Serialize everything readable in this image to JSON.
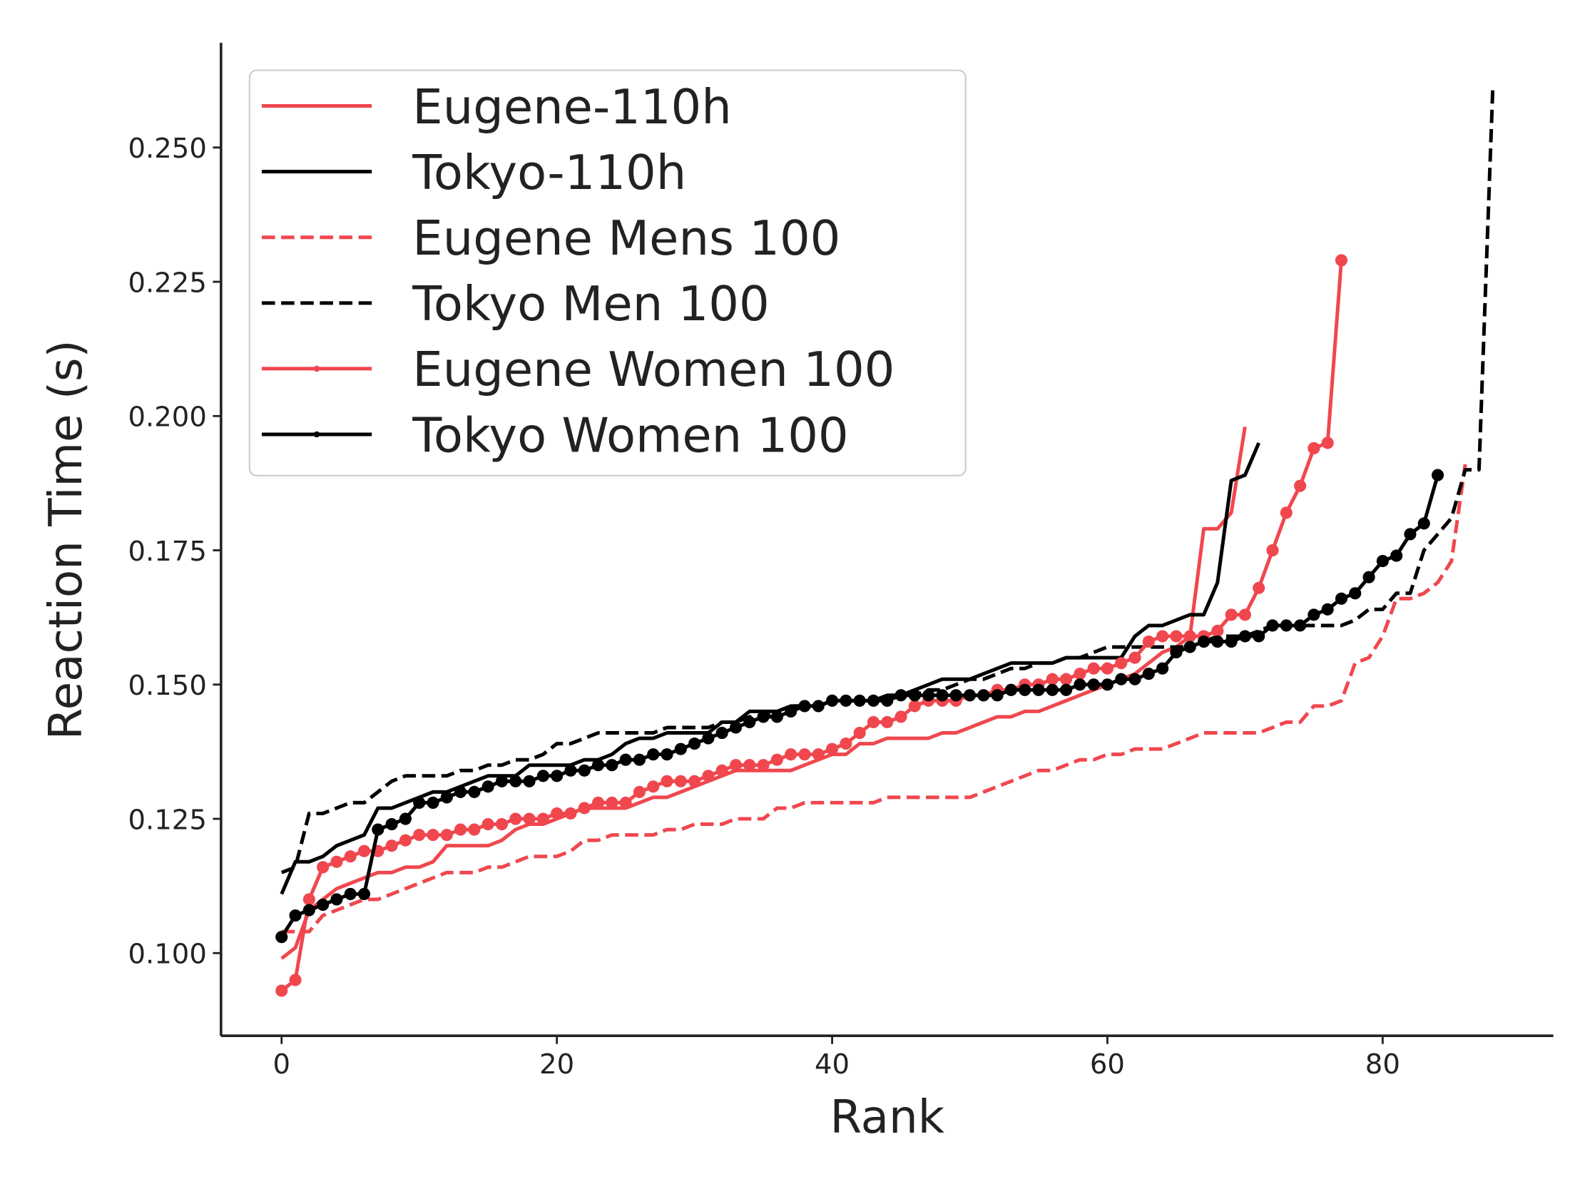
{
  "chart_data": {
    "type": "line",
    "xlabel": "Rank",
    "ylabel": "Reaction Time (s)",
    "x": [
      0,
      1,
      2,
      3,
      4,
      5,
      6,
      7,
      8,
      9,
      10,
      11,
      12,
      13,
      14,
      15,
      16,
      17,
      18,
      19,
      20,
      21,
      22,
      23,
      24,
      25,
      26,
      27,
      28,
      29,
      30,
      31,
      32,
      33,
      34,
      35,
      36,
      37,
      38,
      39,
      40,
      41,
      42,
      43,
      44,
      45,
      46,
      47,
      48,
      49,
      50,
      51,
      52,
      53,
      54,
      55,
      56,
      57,
      58,
      59,
      60,
      61,
      62,
      63,
      64,
      65,
      66,
      67,
      68,
      69,
      70,
      71,
      72,
      73,
      74,
      75,
      76,
      77,
      78,
      79,
      80,
      81,
      82,
      83,
      84,
      85,
      86,
      87,
      88
    ],
    "xlim": [
      -4.4,
      92.4
    ],
    "xticks": [
      0,
      20,
      40,
      60,
      80
    ],
    "ylim": [
      0.0846,
      0.2695
    ],
    "yticks": [
      {
        "value": 0.1,
        "label": "0.100"
      },
      {
        "value": 0.125,
        "label": "0.125"
      },
      {
        "value": 0.15,
        "label": "0.150"
      },
      {
        "value": 0.175,
        "label": "0.175"
      },
      {
        "value": 0.2,
        "label": "0.200"
      },
      {
        "value": 0.225,
        "label": "0.225"
      },
      {
        "value": 0.25,
        "label": "0.250"
      }
    ],
    "legend": "upper left",
    "grid": false,
    "series": [
      {
        "name": "Eugene-110h",
        "color": "#f0474e",
        "dash": false,
        "marker": false,
        "values": [
          0.099,
          0.101,
          0.108,
          0.11,
          0.112,
          0.113,
          0.114,
          0.115,
          0.115,
          0.116,
          0.116,
          0.117,
          0.12,
          0.12,
          0.12,
          0.12,
          0.121,
          0.123,
          0.124,
          0.124,
          0.125,
          0.126,
          0.127,
          0.127,
          0.127,
          0.127,
          0.128,
          0.129,
          0.129,
          0.13,
          0.131,
          0.132,
          0.133,
          0.134,
          0.134,
          0.134,
          0.134,
          0.134,
          0.135,
          0.136,
          0.137,
          0.137,
          0.139,
          0.139,
          0.14,
          0.14,
          0.14,
          0.14,
          0.141,
          0.141,
          0.142,
          0.143,
          0.144,
          0.144,
          0.145,
          0.145,
          0.146,
          0.147,
          0.148,
          0.149,
          0.15,
          0.151,
          0.152,
          0.154,
          0.156,
          0.157,
          0.159,
          0.179,
          0.179,
          0.182,
          0.198,
          null,
          null,
          null,
          null,
          null,
          null,
          null,
          null,
          null,
          null,
          null,
          null,
          null,
          null,
          null,
          null,
          null,
          null
        ]
      },
      {
        "name": "Tokyo-110h",
        "color": "#000000",
        "dash": false,
        "marker": false,
        "values": [
          0.111,
          0.117,
          0.117,
          0.118,
          0.12,
          0.121,
          0.122,
          0.127,
          0.127,
          0.128,
          0.129,
          0.13,
          0.13,
          0.131,
          0.132,
          0.133,
          0.133,
          0.133,
          0.135,
          0.135,
          0.135,
          0.135,
          0.136,
          0.136,
          0.137,
          0.139,
          0.14,
          0.14,
          0.141,
          0.141,
          0.141,
          0.141,
          0.143,
          0.143,
          0.145,
          0.145,
          0.145,
          0.146,
          0.146,
          0.146,
          0.147,
          0.147,
          0.147,
          0.147,
          0.148,
          0.148,
          0.149,
          0.15,
          0.151,
          0.151,
          0.151,
          0.152,
          0.153,
          0.154,
          0.154,
          0.154,
          0.154,
          0.155,
          0.155,
          0.155,
          0.155,
          0.155,
          0.159,
          0.161,
          0.161,
          0.162,
          0.163,
          0.163,
          0.169,
          0.188,
          0.189,
          0.195,
          null,
          null,
          null,
          null,
          null,
          null,
          null,
          null,
          null,
          null,
          null,
          null,
          null,
          null,
          null,
          null,
          null
        ]
      },
      {
        "name": "Eugene Mens 100",
        "color": "#f0474e",
        "dash": true,
        "marker": false,
        "values": [
          0.104,
          0.104,
          0.104,
          0.107,
          0.108,
          0.109,
          0.11,
          0.11,
          0.111,
          0.112,
          0.113,
          0.114,
          0.115,
          0.115,
          0.115,
          0.116,
          0.116,
          0.117,
          0.118,
          0.118,
          0.118,
          0.119,
          0.121,
          0.121,
          0.122,
          0.122,
          0.122,
          0.122,
          0.123,
          0.123,
          0.124,
          0.124,
          0.124,
          0.125,
          0.125,
          0.125,
          0.127,
          0.127,
          0.128,
          0.128,
          0.128,
          0.128,
          0.128,
          0.128,
          0.129,
          0.129,
          0.129,
          0.129,
          0.129,
          0.129,
          0.129,
          0.13,
          0.131,
          0.132,
          0.133,
          0.134,
          0.134,
          0.135,
          0.136,
          0.136,
          0.137,
          0.137,
          0.138,
          0.138,
          0.138,
          0.139,
          0.14,
          0.141,
          0.141,
          0.141,
          0.141,
          0.141,
          0.142,
          0.143,
          0.143,
          0.146,
          0.146,
          0.147,
          0.154,
          0.155,
          0.159,
          0.166,
          0.166,
          0.167,
          0.169,
          0.173,
          0.191,
          null,
          null
        ]
      },
      {
        "name": "Tokyo Men 100",
        "color": "#000000",
        "dash": true,
        "marker": false,
        "values": [
          0.115,
          0.116,
          0.126,
          0.126,
          0.127,
          0.128,
          0.128,
          0.13,
          0.132,
          0.133,
          0.133,
          0.133,
          0.133,
          0.134,
          0.134,
          0.135,
          0.135,
          0.136,
          0.136,
          0.137,
          0.139,
          0.139,
          0.14,
          0.141,
          0.141,
          0.141,
          0.141,
          0.141,
          0.142,
          0.142,
          0.142,
          0.142,
          0.143,
          0.143,
          0.144,
          0.144,
          0.145,
          0.146,
          0.146,
          0.146,
          0.147,
          0.147,
          0.147,
          0.147,
          0.148,
          0.148,
          0.148,
          0.149,
          0.149,
          0.15,
          0.151,
          0.151,
          0.152,
          0.153,
          0.153,
          0.154,
          0.154,
          0.155,
          0.155,
          0.156,
          0.157,
          0.157,
          0.157,
          0.157,
          0.157,
          0.157,
          0.157,
          0.158,
          0.159,
          0.159,
          0.159,
          0.16,
          0.161,
          0.161,
          0.161,
          0.161,
          0.161,
          0.161,
          0.162,
          0.164,
          0.164,
          0.167,
          0.167,
          0.175,
          0.178,
          0.181,
          0.19,
          0.19,
          0.261
        ]
      },
      {
        "name": "Eugene Women 100",
        "color": "#f0474e",
        "dash": false,
        "marker": true,
        "values": [
          0.093,
          0.095,
          0.11,
          0.116,
          0.117,
          0.118,
          0.119,
          0.119,
          0.12,
          0.121,
          0.122,
          0.122,
          0.122,
          0.123,
          0.123,
          0.124,
          0.124,
          0.125,
          0.125,
          0.125,
          0.126,
          0.126,
          0.127,
          0.128,
          0.128,
          0.128,
          0.13,
          0.131,
          0.132,
          0.132,
          0.132,
          0.133,
          0.134,
          0.135,
          0.135,
          0.135,
          0.136,
          0.137,
          0.137,
          0.137,
          0.138,
          0.139,
          0.141,
          0.143,
          0.143,
          0.144,
          0.146,
          0.147,
          0.147,
          0.147,
          0.148,
          0.148,
          0.149,
          0.149,
          0.15,
          0.15,
          0.151,
          0.151,
          0.152,
          0.153,
          0.153,
          0.154,
          0.155,
          0.158,
          0.159,
          0.159,
          0.159,
          0.159,
          0.16,
          0.163,
          0.163,
          0.168,
          0.175,
          0.182,
          0.187,
          0.194,
          0.195,
          0.229,
          null,
          null,
          null,
          null,
          null,
          null,
          null,
          null,
          null,
          null,
          null
        ]
      },
      {
        "name": "Tokyo Women 100",
        "color": "#000000",
        "dash": false,
        "marker": true,
        "values": [
          0.103,
          0.107,
          0.108,
          0.109,
          0.11,
          0.111,
          0.111,
          0.123,
          0.124,
          0.125,
          0.128,
          0.128,
          0.129,
          0.13,
          0.13,
          0.131,
          0.132,
          0.132,
          0.132,
          0.133,
          0.133,
          0.134,
          0.134,
          0.135,
          0.135,
          0.136,
          0.136,
          0.137,
          0.137,
          0.138,
          0.139,
          0.14,
          0.141,
          0.142,
          0.143,
          0.144,
          0.144,
          0.145,
          0.146,
          0.146,
          0.147,
          0.147,
          0.147,
          0.147,
          0.147,
          0.148,
          0.148,
          0.148,
          0.148,
          0.148,
          0.148,
          0.148,
          0.148,
          0.149,
          0.149,
          0.149,
          0.149,
          0.149,
          0.15,
          0.15,
          0.15,
          0.151,
          0.151,
          0.152,
          0.153,
          0.156,
          0.157,
          0.158,
          0.158,
          0.158,
          0.159,
          0.159,
          0.161,
          0.161,
          0.161,
          0.163,
          0.164,
          0.166,
          0.167,
          0.17,
          0.173,
          0.174,
          0.178,
          0.18,
          0.189,
          null,
          null,
          null,
          null
        ]
      }
    ]
  }
}
